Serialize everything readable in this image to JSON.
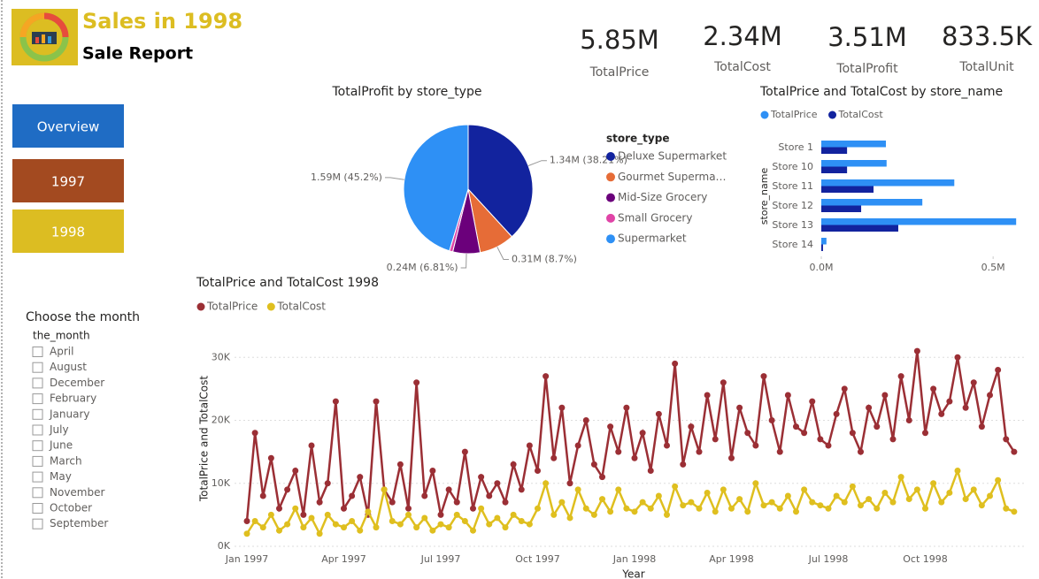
{
  "header": {
    "title": "Sales in 1998",
    "subtitle": "Sale Report"
  },
  "kpis": [
    {
      "value": "5.85M",
      "label": "TotalPrice"
    },
    {
      "value": "2.34M",
      "label": "TotalCost"
    },
    {
      "value": "3.51M",
      "label": "TotalProfit"
    },
    {
      "value": "833.5K",
      "label": "TotalUnit"
    }
  ],
  "buttons": [
    {
      "label": "Overview",
      "color": "#1f6cc4"
    },
    {
      "label": "1997",
      "color": "#a34a20"
    },
    {
      "label": "1998",
      "color": "#dcbd22"
    }
  ],
  "slicer": {
    "title": "Choose the month",
    "field": "the_month",
    "items": [
      "April",
      "August",
      "December",
      "February",
      "January",
      "July",
      "June",
      "March",
      "May",
      "November",
      "October",
      "September"
    ]
  },
  "chart_data": [
    {
      "type": "pie",
      "title": "TotalProfit by store_type",
      "legend_title": "store_type",
      "categories": [
        "Deluxe Supermarket",
        "Gourmet Superma…",
        "Mid-Size Grocery",
        "Small Grocery",
        "Supermarket"
      ],
      "values": [
        1340000,
        310000,
        240000,
        30000,
        1590000
      ],
      "value_labels": [
        "1.34M (38.21%)",
        "0.31M (8.7%)",
        "0.24M (6.81%)",
        null,
        "1.59M (45.2%)"
      ],
      "colors": [
        "#12239e",
        "#e66c37",
        "#6b007b",
        "#e044a7",
        "#2e90f5"
      ]
    },
    {
      "type": "hbar",
      "title": "TotalPrice and TotalCost by store_name",
      "ylabel": "store_name",
      "categories": [
        "Store 1",
        "Store 10",
        "Store 11",
        "Store 12",
        "Store 13",
        "Store 14"
      ],
      "series": [
        {
          "name": "TotalPrice",
          "color": "#2e90f5",
          "values": [
            188000,
            190000,
            387000,
            294000,
            567000,
            15000
          ]
        },
        {
          "name": "TotalCost",
          "color": "#12239e",
          "values": [
            75000,
            75000,
            152000,
            116000,
            224000,
            5000
          ]
        }
      ],
      "xlim": [
        0,
        600000
      ],
      "xticks": [
        {
          "value": 0,
          "label": "0.0M"
        },
        {
          "value": 500000,
          "label": "0.5M"
        }
      ]
    },
    {
      "type": "line",
      "title": "TotalPrice and TotalCost 1998",
      "xlabel": "Year",
      "ylabel": "TotalPrice and TotalCost",
      "categories": [
        "Jan 1997",
        null,
        null,
        null,
        null,
        null,
        null,
        null,
        null,
        null,
        null,
        null,
        "Apr 1997",
        null,
        null,
        null,
        null,
        null,
        null,
        null,
        null,
        null,
        null,
        null,
        "Jul 1997",
        null,
        null,
        null,
        null,
        null,
        null,
        null,
        null,
        null,
        null,
        null,
        "Oct 1997",
        null,
        null,
        null,
        null,
        null,
        null,
        null,
        null,
        null,
        null,
        null,
        "Jan 1998",
        null,
        null,
        null,
        null,
        null,
        null,
        null,
        null,
        null,
        null,
        null,
        "Apr 1998",
        null,
        null,
        null,
        null,
        null,
        null,
        null,
        null,
        null,
        null,
        null,
        "Jul 1998",
        null,
        null,
        null,
        null,
        null,
        null,
        null,
        null,
        null,
        null,
        null,
        "Oct 1998",
        null,
        null,
        null,
        null,
        null,
        null,
        null,
        null,
        null,
        null,
        null
      ],
      "series": [
        {
          "name": "TotalPrice",
          "color": "#9b2f35",
          "values": [
            4000,
            18000,
            8000,
            14000,
            6000,
            9000,
            12000,
            5000,
            16000,
            7000,
            10000,
            23000,
            6000,
            8000,
            11000,
            5000,
            23000,
            9000,
            7000,
            13000,
            6000,
            26000,
            8000,
            12000,
            5000,
            9000,
            7000,
            15000,
            6000,
            11000,
            8000,
            10000,
            7000,
            13000,
            9000,
            16000,
            12000,
            27000,
            14000,
            22000,
            10000,
            16000,
            20000,
            13000,
            11000,
            19000,
            15000,
            22000,
            14000,
            18000,
            12000,
            21000,
            16000,
            29000,
            13000,
            19000,
            15000,
            24000,
            17000,
            26000,
            14000,
            22000,
            18000,
            16000,
            27000,
            20000,
            15000,
            24000,
            19000,
            18000,
            23000,
            17000,
            16000,
            21000,
            25000,
            18000,
            15000,
            22000,
            19000,
            24000,
            17000,
            27000,
            20000,
            31000,
            18000,
            25000,
            21000,
            23000,
            30000,
            22000,
            26000,
            19000,
            24000,
            28000,
            17000,
            15000
          ]
        },
        {
          "name": "TotalCost",
          "color": "#dfbf1f",
          "values": [
            2000,
            4000,
            3000,
            5000,
            2500,
            3500,
            6000,
            3000,
            4500,
            2000,
            5000,
            3500,
            3000,
            4000,
            2500,
            5500,
            3000,
            9000,
            4000,
            3500,
            5000,
            3000,
            4500,
            2500,
            3500,
            3000,
            5000,
            4000,
            2500,
            6000,
            3500,
            4500,
            3000,
            5000,
            4000,
            3500,
            6000,
            10000,
            5000,
            7000,
            4500,
            9000,
            6000,
            5000,
            7500,
            5500,
            9000,
            6000,
            5500,
            7000,
            6000,
            8000,
            5000,
            9500,
            6500,
            7000,
            6000,
            8500,
            5500,
            9000,
            6000,
            7500,
            5500,
            10000,
            6500,
            7000,
            6000,
            8000,
            5500,
            9000,
            7000,
            6500,
            6000,
            8000,
            7000,
            9500,
            6500,
            7500,
            6000,
            8500,
            7000,
            11000,
            7500,
            9000,
            6000,
            10000,
            7000,
            8500,
            12000,
            7500,
            9000,
            6500,
            8000,
            10500,
            6000,
            5500
          ]
        }
      ],
      "ylim": [
        0,
        32000
      ],
      "yticks": [
        {
          "value": 0,
          "label": "0K"
        },
        {
          "value": 10000,
          "label": "10K"
        },
        {
          "value": 20000,
          "label": "20K"
        },
        {
          "value": 30000,
          "label": "30K"
        }
      ],
      "grid": true
    }
  ]
}
